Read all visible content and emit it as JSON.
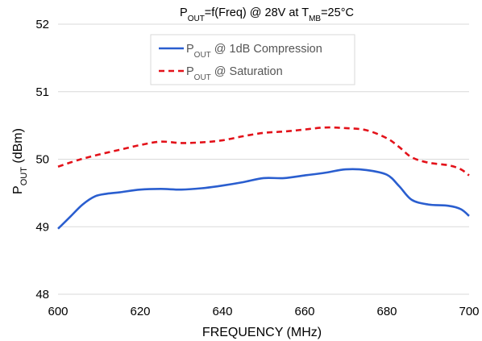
{
  "chart_data": {
    "type": "line",
    "title": {
      "main": "P",
      "main_sub": "OUT",
      "rest": "=f(Freq) @ 28V at T",
      "rest_sub": "MB",
      "tail": "=25°C"
    },
    "xlabel": "FREQUENCY (MHz)",
    "ylabel": {
      "main": "P",
      "sub": "OUT",
      "rest": " (dBm)"
    },
    "xlim": [
      600,
      700
    ],
    "ylim": [
      48,
      52
    ],
    "x_ticks": [
      "600",
      "620",
      "640",
      "660",
      "680",
      "700"
    ],
    "y_ticks": [
      "48",
      "49",
      "50",
      "51",
      "52"
    ],
    "grid": "horizontal",
    "legend_position": "top-center",
    "series": [
      {
        "name": {
          "main": "P",
          "sub": "OUT",
          "rest": " @ 1dB Compression"
        },
        "color": "#2a5ecf",
        "dash": "solid",
        "x": [
          600,
          603,
          606,
          609,
          612,
          615,
          620,
          625,
          630,
          635,
          640,
          645,
          650,
          655,
          660,
          665,
          670,
          675,
          680,
          683,
          686,
          690,
          695,
          698,
          700
        ],
        "y": [
          48.97,
          49.15,
          49.33,
          49.45,
          49.49,
          49.51,
          49.55,
          49.56,
          49.55,
          49.57,
          49.61,
          49.66,
          49.72,
          49.72,
          49.76,
          49.8,
          49.85,
          49.84,
          49.77,
          49.6,
          49.4,
          49.33,
          49.31,
          49.26,
          49.16
        ]
      },
      {
        "name": {
          "main": "P",
          "sub": "OUT",
          "rest": " @ Saturation"
        },
        "color": "#e3121a",
        "dash": "dashed",
        "x": [
          600,
          605,
          610,
          615,
          620,
          625,
          630,
          635,
          640,
          645,
          650,
          655,
          660,
          665,
          670,
          675,
          680,
          683,
          686,
          690,
          695,
          698,
          700
        ],
        "y": [
          49.89,
          49.99,
          50.07,
          50.14,
          50.21,
          50.26,
          50.24,
          50.25,
          50.28,
          50.34,
          50.39,
          50.41,
          50.44,
          50.47,
          50.46,
          50.43,
          50.31,
          50.18,
          50.03,
          49.95,
          49.91,
          49.85,
          49.76
        ]
      }
    ]
  }
}
